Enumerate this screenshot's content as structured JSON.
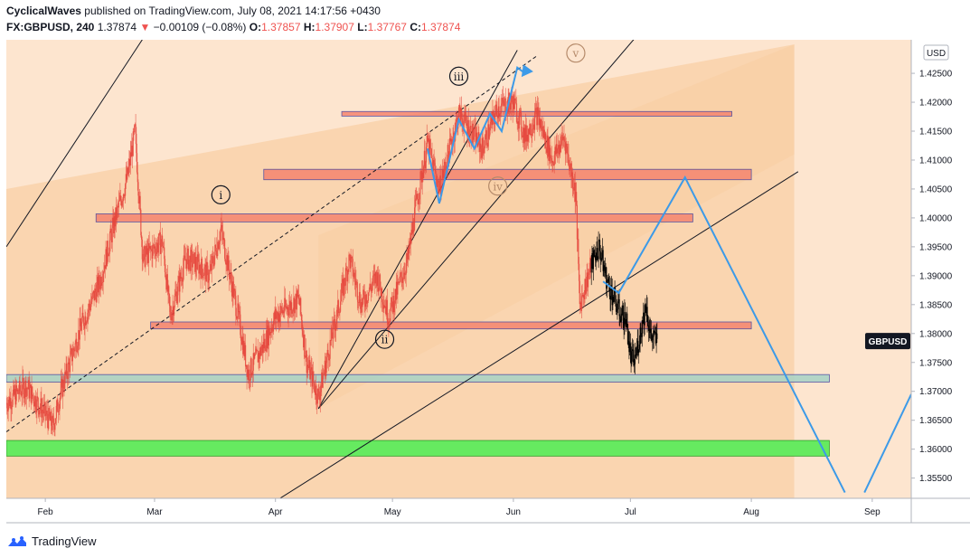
{
  "header": {
    "author": "CyclicalWaves",
    "published": "published on TradingView.com, July 08, 2021 14:17:56 +0430",
    "symbol": "FX:GBPUSD, 240",
    "last": "1.37874",
    "change_arrow": "▼",
    "change": "−0.00109 (−0.08%)",
    "open_label": "O:",
    "open": "1.37857",
    "high_label": "H:",
    "high": "1.37907",
    "low_label": "L:",
    "low": "1.37767",
    "close_label": "C:",
    "close": "1.37874"
  },
  "footer": {
    "brand": "TradingView",
    "logo_icon": "tradingview-logo-icon"
  },
  "colors": {
    "band_fill": "#f8cfa6",
    "page_bg": "#fde5cf",
    "candle_red": "#e5463c",
    "candle_dark": "#000000",
    "projection": "#3c9ae8",
    "resistance_zone": "#f5856f",
    "support_zone": "#a7d3c6",
    "strong_support": "#66ea60",
    "channel_line": "#131722",
    "wave_label": "#131722",
    "wave_label_faded": "#b58a6a"
  },
  "chart_data": {
    "type": "candlestick",
    "symbol": "GBPUSD",
    "currency_label": "USD",
    "price_tag": "GBPUSD",
    "y_ticks": [
      "1.42500",
      "1.42000",
      "1.41500",
      "1.41000",
      "1.40500",
      "1.40000",
      "1.39500",
      "1.39000",
      "1.38500",
      "1.38000",
      "1.37500",
      "1.37000",
      "1.36500",
      "1.36000",
      "1.35500"
    ],
    "ylim": [
      1.3515,
      1.4308
    ],
    "x_ticks": [
      "Feb",
      "Mar",
      "Apr",
      "May",
      "Jun",
      "Jul",
      "Aug",
      "Sep"
    ],
    "x_tick_dates": [
      "2021-02-01",
      "2021-03-01",
      "2021-04-01",
      "2021-05-01",
      "2021-06-01",
      "2021-07-01",
      "2021-08-01",
      "2021-09-01"
    ],
    "xlim": [
      "2021-01-22",
      "2021-09-11"
    ],
    "price_path": [
      [
        "2021-01-22",
        1.368
      ],
      [
        "2021-01-27",
        1.371
      ],
      [
        "2021-02-01",
        1.366
      ],
      [
        "2021-02-03",
        1.364
      ],
      [
        "2021-02-05",
        1.37
      ],
      [
        "2021-02-10",
        1.381
      ],
      [
        "2021-02-15",
        1.389
      ],
      [
        "2021-02-19",
        1.4
      ],
      [
        "2021-02-22",
        1.407
      ],
      [
        "2021-02-24",
        1.415
      ],
      [
        "2021-02-26",
        1.393
      ],
      [
        "2021-03-03",
        1.396
      ],
      [
        "2021-03-05",
        1.383
      ],
      [
        "2021-03-09",
        1.393
      ],
      [
        "2021-03-12",
        1.392
      ],
      [
        "2021-03-15",
        1.39
      ],
      [
        "2021-03-18",
        1.398
      ],
      [
        "2021-03-23",
        1.381
      ],
      [
        "2021-03-25",
        1.373
      ],
      [
        "2021-03-29",
        1.378
      ],
      [
        "2021-04-01",
        1.383
      ],
      [
        "2021-04-07",
        1.386
      ],
      [
        "2021-04-09",
        1.375
      ],
      [
        "2021-04-12",
        1.369
      ],
      [
        "2021-04-15",
        1.378
      ],
      [
        "2021-04-20",
        1.393
      ],
      [
        "2021-04-23",
        1.385
      ],
      [
        "2021-04-27",
        1.39
      ],
      [
        "2021-04-30",
        1.383
      ],
      [
        "2021-05-05",
        1.393
      ],
      [
        "2021-05-07",
        1.402
      ],
      [
        "2021-05-10",
        1.413
      ],
      [
        "2021-05-13",
        1.405
      ],
      [
        "2021-05-18",
        1.418
      ],
      [
        "2021-05-21",
        1.415
      ],
      [
        "2021-05-24",
        1.412
      ],
      [
        "2021-05-28",
        1.419
      ],
      [
        "2021-06-01",
        1.42
      ],
      [
        "2021-06-04",
        1.414
      ],
      [
        "2021-06-07",
        1.418
      ],
      [
        "2021-06-11",
        1.41
      ],
      [
        "2021-06-14",
        1.414
      ],
      [
        "2021-06-17",
        1.404
      ],
      [
        "2021-06-18",
        1.385
      ],
      [
        "2021-06-21",
        1.392
      ],
      [
        "2021-06-23",
        1.395
      ],
      [
        "2021-06-25",
        1.389
      ],
      [
        "2021-06-28",
        1.384
      ],
      [
        "2021-06-30",
        1.382
      ],
      [
        "2021-07-01",
        1.376
      ],
      [
        "2021-07-02",
        1.375
      ],
      [
        "2021-07-05",
        1.385
      ],
      [
        "2021-07-06",
        1.38
      ],
      [
        "2021-07-07",
        1.379
      ],
      [
        "2021-07-08",
        1.3787
      ]
    ],
    "zones": [
      {
        "kind": "resistance",
        "from": "2021-04-18",
        "to": "2021-07-27",
        "top": 1.4184,
        "bottom": 1.4176
      },
      {
        "kind": "resistance",
        "from": "2021-03-29",
        "to": "2021-08-01",
        "top": 1.4084,
        "bottom": 1.4066
      },
      {
        "kind": "resistance",
        "from": "2021-02-14",
        "to": "2021-07-17",
        "top": 1.4007,
        "bottom": 1.3993
      },
      {
        "kind": "resistance",
        "from": "2021-02-28",
        "to": "2021-08-01",
        "top": 1.382,
        "bottom": 1.3808
      },
      {
        "kind": "support",
        "from": "2021-01-22",
        "to": "2021-08-21",
        "top": 1.3729,
        "bottom": 1.3716
      },
      {
        "kind": "strong-support",
        "from": "2021-01-22",
        "to": "2021-08-21",
        "top": 1.3615,
        "bottom": 1.3588
      }
    ],
    "channels": [
      {
        "style": "solid",
        "start": [
          "2021-01-22",
          1.395
        ],
        "end": [
          "2021-04-04",
          1.469
        ]
      },
      {
        "style": "dashed",
        "start": [
          "2021-01-22",
          1.363
        ],
        "end": [
          "2021-06-07",
          1.428
        ]
      },
      {
        "style": "solid",
        "start": [
          "2021-04-12",
          1.367
        ],
        "end": [
          "2021-06-02",
          1.429
        ]
      },
      {
        "style": "solid",
        "start": [
          "2021-04-12",
          1.367
        ],
        "end": [
          "2021-07-28",
          1.4515
        ]
      },
      {
        "style": "solid",
        "start": [
          "2021-04-01",
          1.351
        ],
        "end": [
          "2021-08-13",
          1.408
        ]
      }
    ],
    "shaded_regions": [
      {
        "from": "2021-01-22",
        "to": "2021-08-12",
        "upper_start": 1.405,
        "upper_end": 1.43,
        "lower_start": 1.3515,
        "lower_end": 1.3515
      },
      {
        "from": "2021-04-12",
        "to": "2021-08-12",
        "upper_start": 1.397,
        "upper_end": 1.43,
        "lower_start": 1.367,
        "lower_end": 1.411
      }
    ],
    "projection_path": [
      [
        "2021-05-10",
        1.412
      ],
      [
        "2021-05-13",
        1.4025
      ],
      [
        "2021-05-18",
        1.417
      ],
      [
        "2021-05-22",
        1.412
      ],
      [
        "2021-05-26",
        1.418
      ],
      [
        "2021-05-29",
        1.415
      ],
      [
        "2021-06-02",
        1.426
      ],
      [
        "2021-06-04",
        1.425
      ]
    ],
    "forecast_path": [
      [
        "2021-06-24",
        1.389
      ],
      [
        "2021-06-28",
        1.387
      ],
      [
        "2021-07-15",
        1.407
      ],
      [
        "2021-08-25",
        1.3525
      ]
    ],
    "forecast_path_2": [
      [
        "2021-08-30",
        1.3525
      ],
      [
        "2021-09-11",
        1.3695
      ]
    ],
    "wave_labels": [
      {
        "text": "i",
        "date": "2021-03-18",
        "price": 1.404,
        "faded": false
      },
      {
        "text": "ii",
        "date": "2021-04-29",
        "price": 1.379,
        "faded": false
      },
      {
        "text": "iii",
        "date": "2021-05-18",
        "price": 1.4245,
        "faded": false
      },
      {
        "text": "iv",
        "date": "2021-05-28",
        "price": 1.4055,
        "faded": true
      },
      {
        "text": "v",
        "date": "2021-06-17",
        "price": 1.4285,
        "faded": true
      }
    ],
    "last_price": 1.3787
  }
}
